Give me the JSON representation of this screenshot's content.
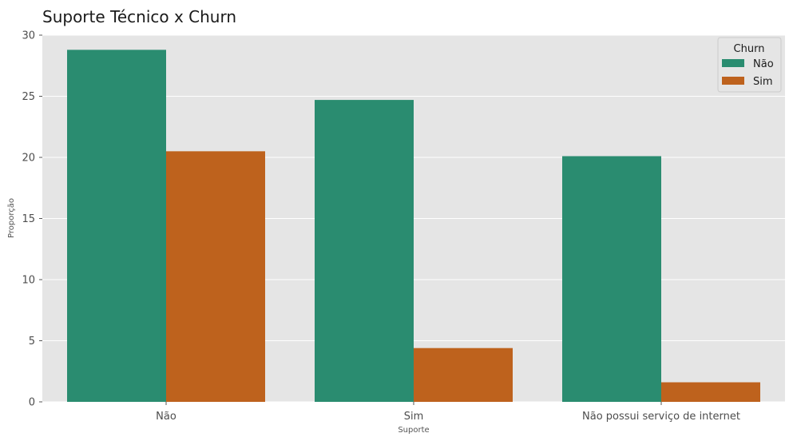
{
  "chart_data": {
    "type": "bar",
    "title": "Suporte Técnico x Churn",
    "xlabel": "Suporte",
    "ylabel": "Proporção",
    "categories": [
      "Não",
      "Sim",
      "Não possui serviço de internet"
    ],
    "series": [
      {
        "name": "Não",
        "values": [
          28.8,
          24.7,
          20.1
        ],
        "color": "#2a8c70"
      },
      {
        "name": "Sim",
        "values": [
          20.5,
          4.4,
          1.6
        ],
        "color": "#be621d"
      }
    ],
    "ylim": [
      0,
      30
    ],
    "yticks": [
      0,
      5,
      10,
      15,
      20,
      25,
      30
    ],
    "grid": true,
    "legend": {
      "title": "Churn",
      "placement": "top-right"
    }
  },
  "colors": {
    "plot_background": "#e5e5e5",
    "grid": "#ffffff"
  }
}
